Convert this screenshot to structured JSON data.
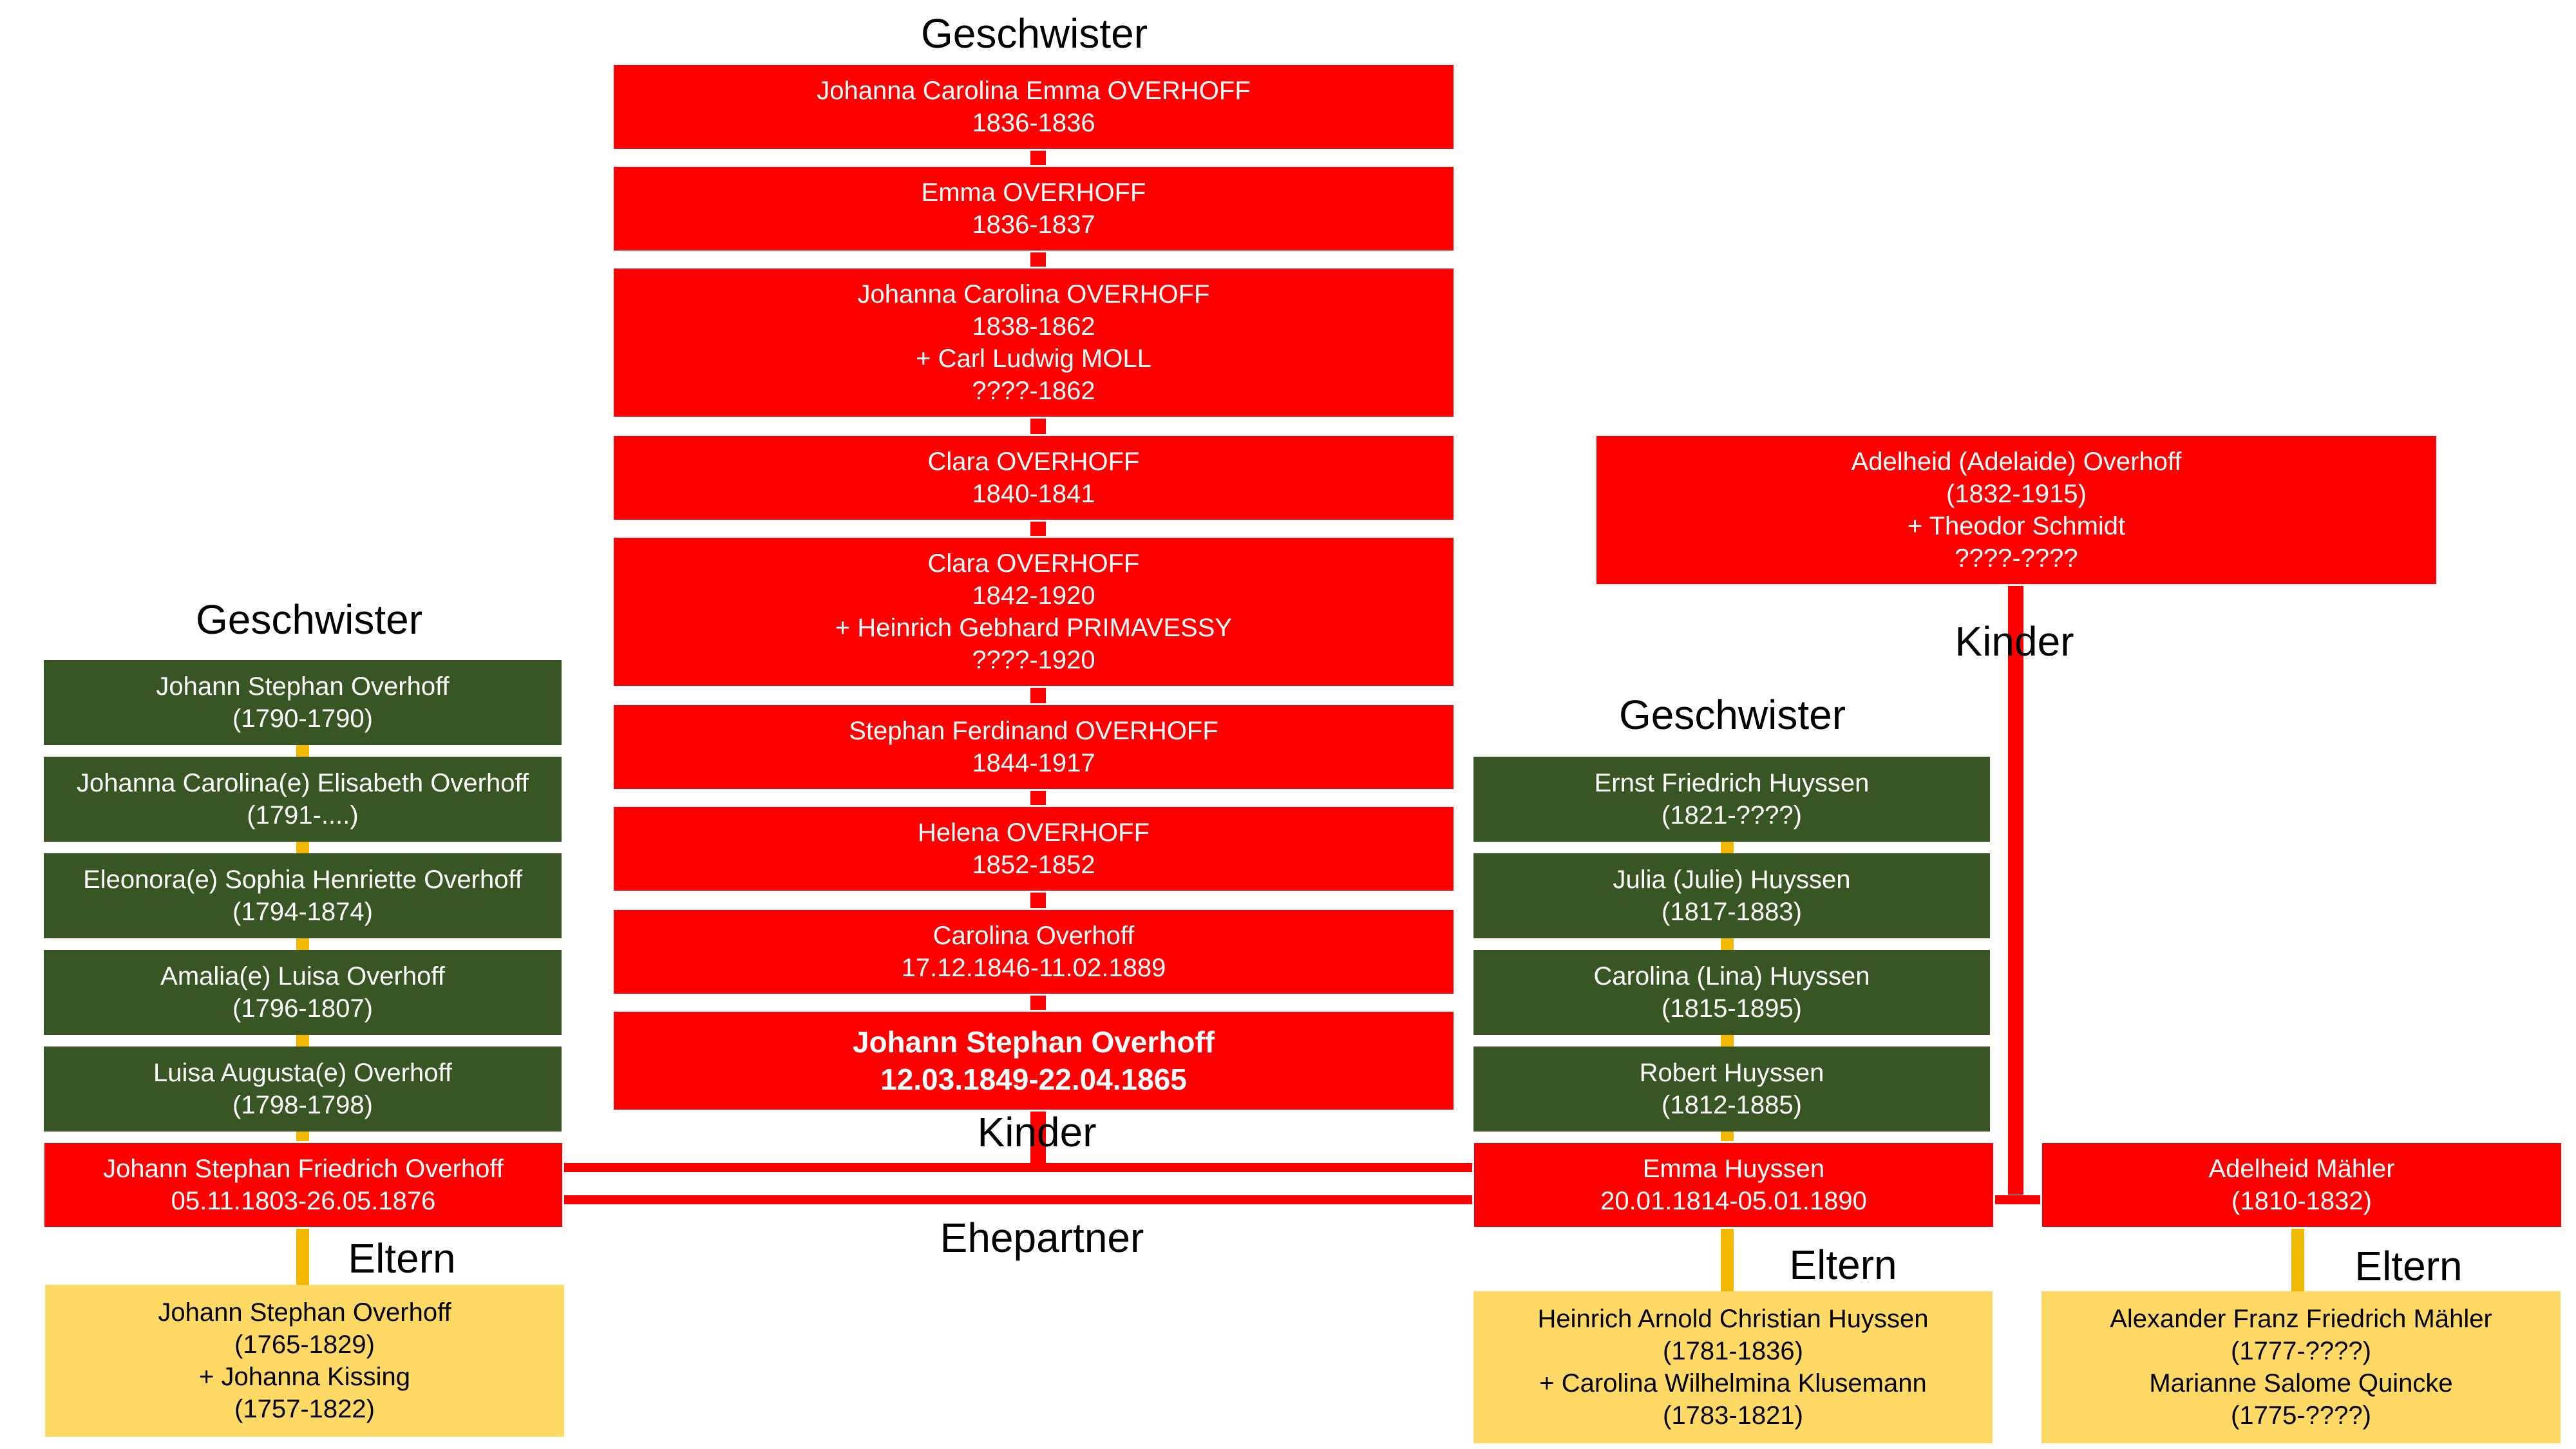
{
  "colors": {
    "red": "#ff0000",
    "green": "#375623",
    "yellow": "#ffd966",
    "connector_gold": "#f2b800",
    "connector_red": "#ff0000"
  },
  "headings": {
    "children_siblings": "Geschwister",
    "father_siblings": "Geschwister",
    "mother_siblings": "Geschwister",
    "children_label": "Kinder",
    "half_children_label": "Kinder",
    "spouse_label": "Ehepartner",
    "father_parents_label": "Eltern",
    "mother_parents_label": "Eltern",
    "second_wife_parents_label": "Eltern"
  },
  "children": [
    {
      "lines": [
        "Johanna Carolina Emma OVERHOFF",
        "1836-1836"
      ]
    },
    {
      "lines": [
        "Emma OVERHOFF",
        "1836-1837"
      ]
    },
    {
      "lines": [
        "Johanna Carolina OVERHOFF",
        "1838-1862",
        "+ Carl Ludwig MOLL",
        "????-1862"
      ]
    },
    {
      "lines": [
        "Clara OVERHOFF",
        "1840-1841"
      ]
    },
    {
      "lines": [
        "Clara OVERHOFF",
        "1842-1920",
        "+ Heinrich Gebhard PRIMAVESSY",
        "????-1920"
      ]
    },
    {
      "lines": [
        "Stephan Ferdinand OVERHOFF",
        "1844-1917"
      ]
    },
    {
      "lines": [
        "Helena OVERHOFF",
        "1852-1852"
      ]
    },
    {
      "lines": [
        "Carolina Overhoff",
        "17.12.1846-11.02.1889"
      ]
    },
    {
      "lines": [
        "Johann Stephan Overhoff",
        "12.03.1849-22.04.1865"
      ],
      "highlight": true
    }
  ],
  "father_siblings": [
    {
      "lines": [
        "Johann Stephan Overhoff",
        "(1790-1790)"
      ]
    },
    {
      "lines": [
        "Johanna Carolina(e) Elisabeth Overhoff",
        "(1791-....)"
      ]
    },
    {
      "lines": [
        "Eleonora(e) Sophia Henriette Overhoff",
        "(1794-1874)"
      ]
    },
    {
      "lines": [
        "Amalia(e) Luisa Overhoff",
        "(1796-1807)"
      ]
    },
    {
      "lines": [
        "Luisa Augusta(e) Overhoff",
        "(1798-1798)"
      ]
    }
  ],
  "father": {
    "lines": [
      "Johann Stephan Friedrich Overhoff",
      "05.11.1803-26.05.1876"
    ]
  },
  "father_parents": {
    "lines": [
      "Johann Stephan Overhoff",
      "(1765-1829)",
      "+ Johanna Kissing",
      "(1757-1822)"
    ]
  },
  "mother_siblings": [
    {
      "lines": [
        "Ernst Friedrich Huyssen",
        "(1821-????)"
      ]
    },
    {
      "lines": [
        "Julia (Julie) Huyssen",
        "(1817-1883)"
      ]
    },
    {
      "lines": [
        "Carolina (Lina) Huyssen",
        "(1815-1895)"
      ]
    },
    {
      "lines": [
        "Robert Huyssen",
        "(1812-1885)"
      ]
    }
  ],
  "mother": {
    "lines": [
      "Emma Huyssen",
      "20.01.1814-05.01.1890"
    ]
  },
  "mother_parents": {
    "lines": [
      "Heinrich Arnold Christian Huyssen",
      "(1781-1836)",
      "+ Carolina Wilhelmina Klusemann",
      "(1783-1821)"
    ]
  },
  "half_child": {
    "lines": [
      "Adelheid (Adelaide) Overhoff",
      "(1832-1915)",
      "+ Theodor Schmidt",
      "????-????"
    ]
  },
  "second_wife": {
    "lines": [
      "Adelheid Mähler",
      "(1810-1832)"
    ]
  },
  "second_wife_parents": {
    "lines": [
      "Alexander Franz Friedrich Mähler",
      "(1777-????)",
      "Marianne Salome Quincke",
      "(1775-????)"
    ]
  }
}
